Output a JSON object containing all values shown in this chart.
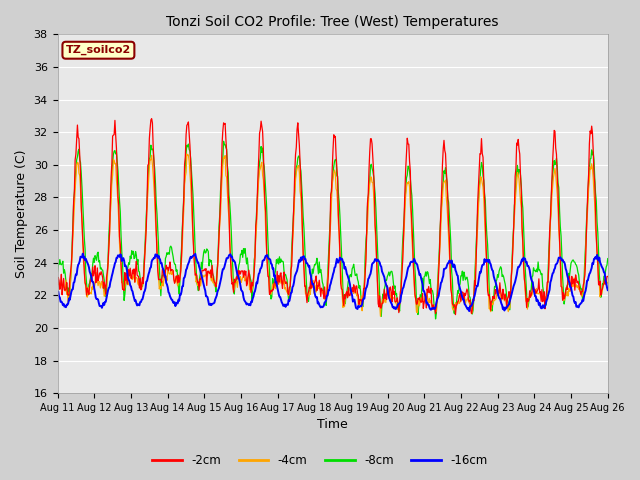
{
  "title": "Tonzi Soil CO2 Profile: Tree (West) Temperatures",
  "xlabel": "Time",
  "ylabel": "Soil Temperature (C)",
  "ylim": [
    16,
    38
  ],
  "xlim": [
    0,
    360
  ],
  "legend_label": "TZ_soilco2",
  "series_labels": [
    "-2cm",
    "-4cm",
    "-8cm",
    "-16cm"
  ],
  "series_colors": [
    "#ff0000",
    "#ffa500",
    "#00dd00",
    "#0000ff"
  ],
  "n_points": 720,
  "tick_labels": [
    "Aug 11",
    "Aug 12",
    "Aug 13",
    "Aug 14",
    "Aug 15",
    "Aug 16",
    "Aug 17",
    "Aug 18",
    "Aug 19",
    "Aug 20",
    "Aug 21",
    "Aug 22",
    "Aug 23",
    "Aug 24",
    "Aug 25",
    "Aug 26"
  ],
  "tick_positions": [
    0,
    24,
    48,
    72,
    96,
    120,
    144,
    168,
    192,
    216,
    240,
    264,
    288,
    312,
    336,
    360
  ],
  "yticks": [
    16,
    18,
    20,
    22,
    24,
    26,
    28,
    30,
    32,
    34,
    36,
    38
  ],
  "fig_width": 6.4,
  "fig_height": 4.8,
  "dpi": 100
}
